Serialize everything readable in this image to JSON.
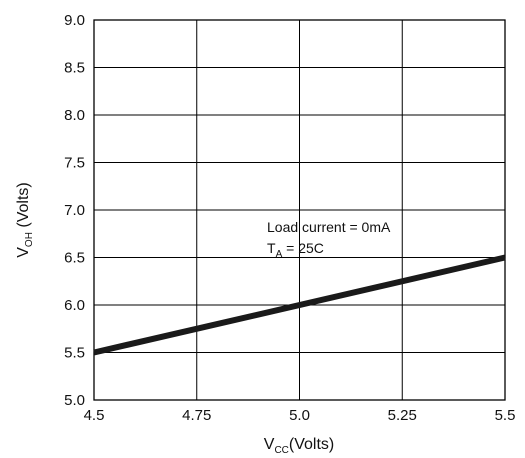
{
  "chart_data": {
    "type": "line",
    "title": "",
    "x": [
      4.5,
      5.5
    ],
    "series": [
      {
        "values": [
          5.5,
          6.5
        ],
        "color": "#1a1a1a"
      }
    ],
    "xlim": [
      4.5,
      5.5
    ],
    "ylim": [
      5.0,
      9.0
    ],
    "xticks": [
      4.5,
      4.75,
      5.0,
      5.25,
      5.5
    ],
    "yticks": [
      5.0,
      5.5,
      6.0,
      6.5,
      7.0,
      7.5,
      8.0,
      8.5,
      9.0
    ],
    "xtick_labels": [
      "4.5",
      "4.75",
      "5.0",
      "5.25",
      "5.5"
    ],
    "ytick_labels": [
      "5.0",
      "5.5",
      "6.0",
      "6.5",
      "7.0",
      "7.5",
      "8.0",
      "8.5",
      "9.0"
    ],
    "xlabel": {
      "main": "V",
      "sub": "CC",
      "rest": "(Volts)"
    },
    "ylabel": {
      "main": "V",
      "sub": "OH",
      "rest": " (Volts)"
    },
    "grid": true,
    "annotations": {
      "line1": "Load current = 0mA",
      "line2": {
        "main": "T",
        "sub": "A",
        "rest": " = 25C"
      }
    }
  }
}
